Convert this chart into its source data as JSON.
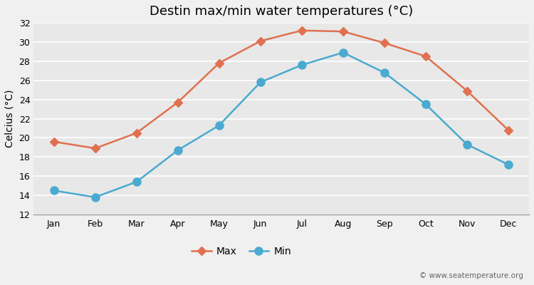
{
  "title": "Destin max/min water temperatures (°C)",
  "ylabel": "Celcius (°C)",
  "months": [
    "Jan",
    "Feb",
    "Mar",
    "Apr",
    "May",
    "Jun",
    "Jul",
    "Aug",
    "Sep",
    "Oct",
    "Nov",
    "Dec"
  ],
  "max_values": [
    19.6,
    18.9,
    20.5,
    23.7,
    27.8,
    30.1,
    31.2,
    31.1,
    29.9,
    28.5,
    24.9,
    20.8
  ],
  "min_values": [
    14.5,
    13.8,
    15.4,
    18.7,
    21.3,
    25.8,
    27.6,
    28.9,
    26.8,
    23.5,
    19.3,
    17.2
  ],
  "max_color": "#e07050",
  "min_color": "#4aaad0",
  "bg_color": "#f0f0f0",
  "plot_bg_color": "#e8e8e8",
  "grid_color": "#ffffff",
  "ylim": [
    12,
    32
  ],
  "yticks": [
    12,
    14,
    16,
    18,
    20,
    22,
    24,
    26,
    28,
    30,
    32
  ],
  "max_marker": "D",
  "min_marker": "o",
  "max_marker_size": 6,
  "min_marker_size": 8,
  "line_width": 1.8,
  "legend_label_max": "Max",
  "legend_label_min": "Min",
  "watermark": "© www.seatemperature.org",
  "title_fontsize": 13,
  "axis_label_fontsize": 10,
  "tick_fontsize": 9,
  "legend_fontsize": 10
}
